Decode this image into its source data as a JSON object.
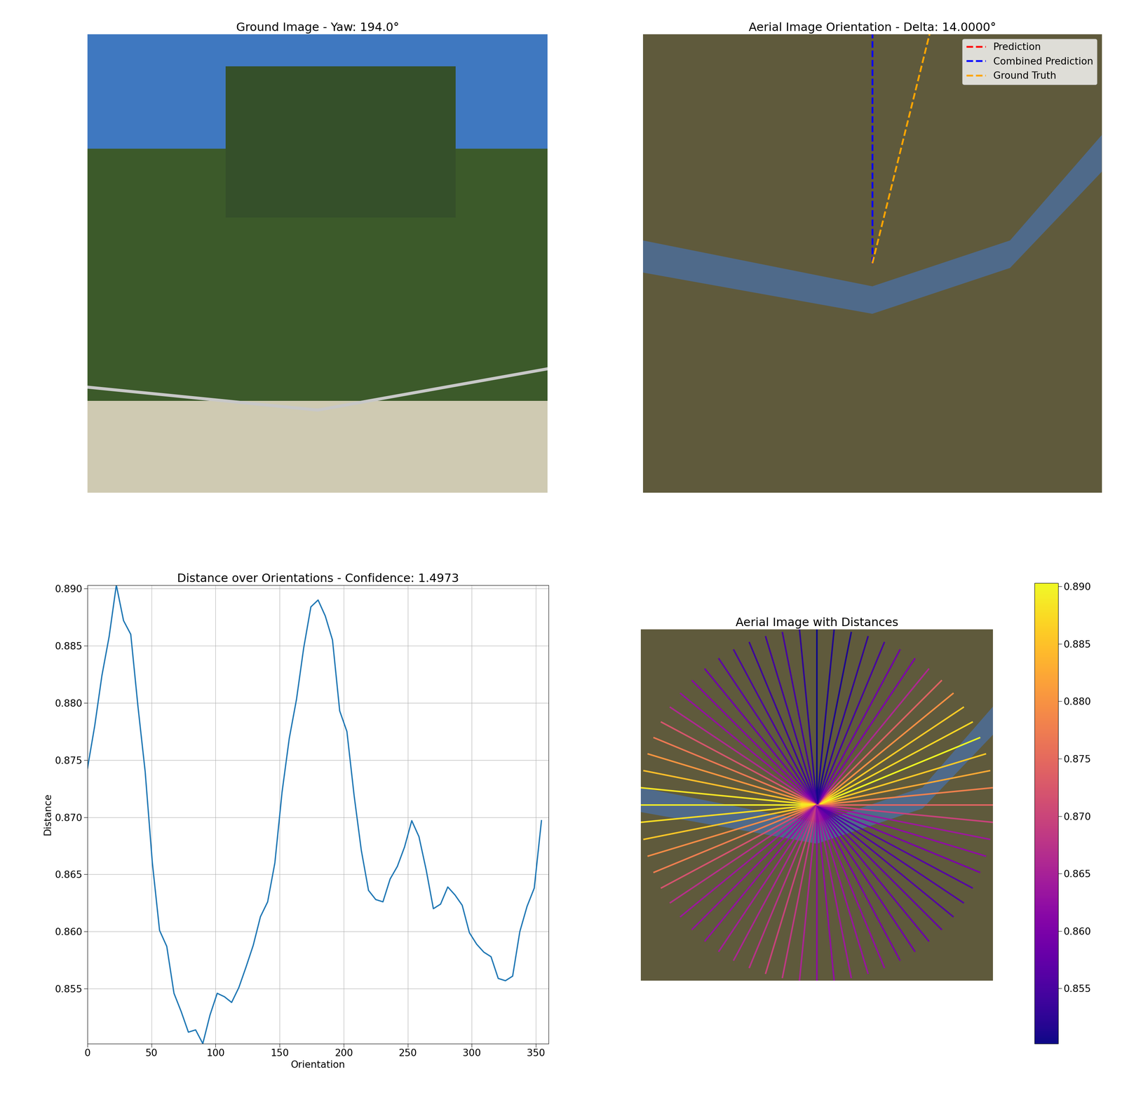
{
  "chart_data": [
    {
      "type": "image",
      "title": "Ground Image - Yaw: 194.0°",
      "tick_labels": false
    },
    {
      "type": "orientation",
      "title": "Aerial Image Orientation - Delta: 14.0000°",
      "tick_labels": false,
      "legend": "upper right",
      "xlim": [
        -1,
        1
      ],
      "ylim": [
        -1,
        1
      ],
      "series": [
        {
          "name": "Prediction",
          "color": "red",
          "line_style": "dashed",
          "angle": 0
        },
        {
          "name": "Combined Prediction",
          "color": "blue",
          "line_style": "dashed",
          "angle": 0
        },
        {
          "name": "Ground Truth",
          "color": "orange",
          "line_style": "dashed",
          "angle": 14
        }
      ]
    },
    {
      "type": "line",
      "title": "Distance over Orientations - Confidence: 1.4973",
      "x_label": "Orientation",
      "y_label": "Distance",
      "color": "#1f77b4",
      "grid": true,
      "x": [
        0,
        5.625,
        11.25,
        16.875,
        22.5,
        28.125,
        33.75,
        39.375,
        45,
        50.625,
        56.25,
        61.875,
        67.5,
        73.125,
        78.75,
        84.375,
        90,
        95.625,
        101.25,
        106.875,
        112.5,
        118.125,
        123.75,
        129.375,
        135,
        140.625,
        146.25,
        151.875,
        157.5,
        163.125,
        168.75,
        174.375,
        180,
        185.625,
        191.25,
        196.875,
        202.5,
        208.125,
        213.75,
        219.375,
        225,
        230.625,
        236.25,
        241.875,
        247.5,
        253.125,
        258.75,
        264.375,
        270,
        275.625,
        281.25,
        286.875,
        292.5,
        298.125,
        303.75,
        309.375,
        315,
        320.625,
        326.25,
        331.875,
        337.5,
        343.125,
        348.75,
        354.375
      ],
      "values": [
        0.8743,
        0.878,
        0.8824,
        0.8858,
        0.8903,
        0.8872,
        0.886,
        0.8797,
        0.874,
        0.866,
        0.8601,
        0.8587,
        0.8546,
        0.853,
        0.8512,
        0.8514,
        0.8502,
        0.8527,
        0.8546,
        0.8543,
        0.8538,
        0.8551,
        0.8569,
        0.8588,
        0.8613,
        0.8626,
        0.866,
        0.8722,
        0.8769,
        0.8803,
        0.8848,
        0.8884,
        0.889,
        0.8876,
        0.8855,
        0.8793,
        0.8775,
        0.8719,
        0.8671,
        0.8636,
        0.8628,
        0.8626,
        0.8646,
        0.8657,
        0.8674,
        0.8697,
        0.8683,
        0.8654,
        0.862,
        0.8624,
        0.8639,
        0.8632,
        0.8623,
        0.8599,
        0.8589,
        0.8582,
        0.8578,
        0.8559,
        0.8557,
        0.8561,
        0.86,
        0.8622,
        0.8638,
        0.8697
      ],
      "xlim": [
        0,
        360
      ],
      "xticks": [
        0,
        50,
        100,
        150,
        200,
        250,
        300,
        350
      ],
      "ylim": [
        0.8502,
        0.8903
      ],
      "yticks": [
        {
          "value": 0.855,
          "label": "0.855"
        },
        {
          "value": 0.86,
          "label": "0.860"
        },
        {
          "value": 0.865,
          "label": "0.865"
        },
        {
          "value": 0.87,
          "label": "0.870"
        },
        {
          "value": 0.875,
          "label": "0.875"
        },
        {
          "value": 0.88,
          "label": "0.880"
        },
        {
          "value": 0.885,
          "label": "0.885"
        },
        {
          "value": 0.89,
          "label": "0.890"
        }
      ]
    },
    {
      "type": "rays",
      "title": "Aerial Image with Distances",
      "tick_labels": false,
      "xlim": [
        -1,
        1
      ],
      "ylim": [
        -1,
        1
      ],
      "x": [
        0,
        5.625,
        11.25,
        16.875,
        22.5,
        28.125,
        33.75,
        39.375,
        45,
        50.625,
        56.25,
        61.875,
        67.5,
        73.125,
        78.75,
        84.375,
        90,
        95.625,
        101.25,
        106.875,
        112.5,
        118.125,
        123.75,
        129.375,
        135,
        140.625,
        146.25,
        151.875,
        157.5,
        163.125,
        168.75,
        174.375,
        180,
        185.625,
        191.25,
        196.875,
        202.5,
        208.125,
        213.75,
        219.375,
        225,
        230.625,
        236.25,
        241.875,
        247.5,
        253.125,
        258.75,
        264.375,
        270,
        275.625,
        281.25,
        286.875,
        292.5,
        298.125,
        303.75,
        309.375,
        315,
        320.625,
        326.25,
        331.875,
        337.5,
        343.125,
        348.75,
        354.375
      ],
      "values": [
        0.8743,
        0.878,
        0.8824,
        0.8858,
        0.8903,
        0.8872,
        0.886,
        0.8797,
        0.874,
        0.866,
        0.8601,
        0.8587,
        0.8546,
        0.853,
        0.8512,
        0.8514,
        0.8502,
        0.8527,
        0.8546,
        0.8543,
        0.8538,
        0.8551,
        0.8569,
        0.8588,
        0.8613,
        0.8626,
        0.866,
        0.8722,
        0.8769,
        0.8803,
        0.8848,
        0.8884,
        0.889,
        0.8876,
        0.8855,
        0.8793,
        0.8775,
        0.8719,
        0.8671,
        0.8636,
        0.8628,
        0.8626,
        0.8646,
        0.8657,
        0.8674,
        0.8697,
        0.8683,
        0.8654,
        0.862,
        0.8624,
        0.8639,
        0.8632,
        0.8623,
        0.8599,
        0.8589,
        0.8582,
        0.8578,
        0.8559,
        0.8557,
        0.8561,
        0.86,
        0.8622,
        0.8638,
        0.8697
      ],
      "colorbar_range": [
        0.8502,
        0.8903
      ],
      "colorbar_ticks": [
        {
          "value": 0.855,
          "label": "0.855"
        },
        {
          "value": 0.86,
          "label": "0.860"
        },
        {
          "value": 0.865,
          "label": "0.865"
        },
        {
          "value": 0.87,
          "label": "0.870"
        },
        {
          "value": 0.875,
          "label": "0.875"
        },
        {
          "value": 0.88,
          "label": "0.880"
        },
        {
          "value": 0.885,
          "label": "0.885"
        },
        {
          "value": 0.89,
          "label": "0.890"
        }
      ]
    }
  ]
}
